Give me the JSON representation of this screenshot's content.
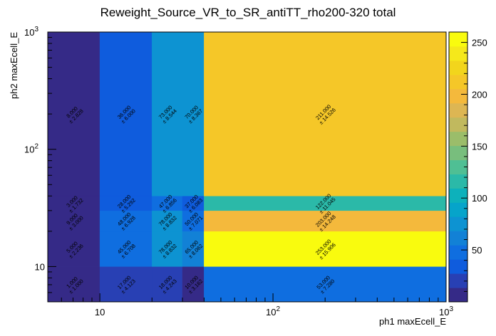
{
  "chart_data": {
    "type": "heatmap",
    "title": "Reweight_Source_VR_to_SR_antiTT_rho200-320 total",
    "xlabel": "ph1 maxEcell_E",
    "ylabel": "ph2 maxEcell_E",
    "xscale": "log",
    "yscale": "log",
    "xlim": [
      5,
      1000
    ],
    "ylim": [
      5,
      1000
    ],
    "x_ticks": [
      {
        "value": 10,
        "label": "10"
      },
      {
        "value": 100,
        "label": "10",
        "exp": "2"
      },
      {
        "value": 1000,
        "label": "10",
        "exp": "3"
      }
    ],
    "y_ticks": [
      {
        "value": 10,
        "label": "10"
      },
      {
        "value": 100,
        "label": "10",
        "exp": "2"
      },
      {
        "value": 1000,
        "label": "10",
        "exp": "3"
      }
    ],
    "x_edges": [
      5,
      10,
      20,
      30,
      40,
      1000
    ],
    "y_edges": [
      5,
      10,
      20,
      30,
      40,
      1000
    ],
    "values": [
      [
        1,
        17,
        18,
        10,
        53
      ],
      [
        5,
        45,
        78,
        65,
        253
      ],
      [
        9,
        48,
        78,
        50,
        203
      ],
      [
        3,
        28,
        47,
        37,
        122
      ],
      [
        8,
        36,
        73,
        70,
        211
      ]
    ],
    "labels": [
      [
        [
          "1.000",
          "± 1.000"
        ],
        [
          "17.000",
          "± 4.123"
        ],
        [
          "18.000",
          "± 4.243"
        ],
        [
          "10.000",
          "± 3.162"
        ],
        [
          "53.000",
          "± 7.280"
        ]
      ],
      [
        [
          "5.000",
          "± 2.236"
        ],
        [
          "45.000",
          "± 6.708"
        ],
        [
          "78.000",
          "± 8.832"
        ],
        [
          "65.000",
          "± 8.062"
        ],
        [
          "253.000",
          "± 15.906"
        ]
      ],
      [
        [
          "9.000",
          "± 3.000"
        ],
        [
          "48.000",
          "± 6.928"
        ],
        [
          "78.000",
          "± 8.832"
        ],
        [
          "50.000",
          "± 7.071"
        ],
        [
          "203.000",
          "± 14.248"
        ]
      ],
      [
        [
          "3.000",
          "± 1.732"
        ],
        [
          "28.000",
          "± 5.292"
        ],
        [
          "47.000",
          "± 6.856"
        ],
        [
          "37.000",
          "± 6.083"
        ],
        [
          "122.000",
          "± 11.045"
        ]
      ],
      [
        [
          "8.000",
          "± 2.828"
        ],
        [
          "36.000",
          "± 6.000"
        ],
        [
          "73.000",
          "± 8.544"
        ],
        [
          "70.000",
          "± 8.367"
        ],
        [
          "211.000",
          "± 14.526"
        ]
      ]
    ],
    "colorbar": {
      "min": 0,
      "max": 260,
      "ticks": [
        50,
        100,
        150,
        200,
        250
      ],
      "palette": [
        "#352a87",
        "#2840b4",
        "#0f5cdd",
        "#0f6ee0",
        "#1281d6",
        "#0d93d2",
        "#06a4ca",
        "#0db1bb",
        "#2bb9a8",
        "#4fbf94",
        "#78be7d",
        "#9bbd6a",
        "#c1b95e",
        "#ddb653",
        "#f4b93c",
        "#f5c728",
        "#f2d51c",
        "#f5e81b",
        "#f9fb0e"
      ]
    }
  }
}
